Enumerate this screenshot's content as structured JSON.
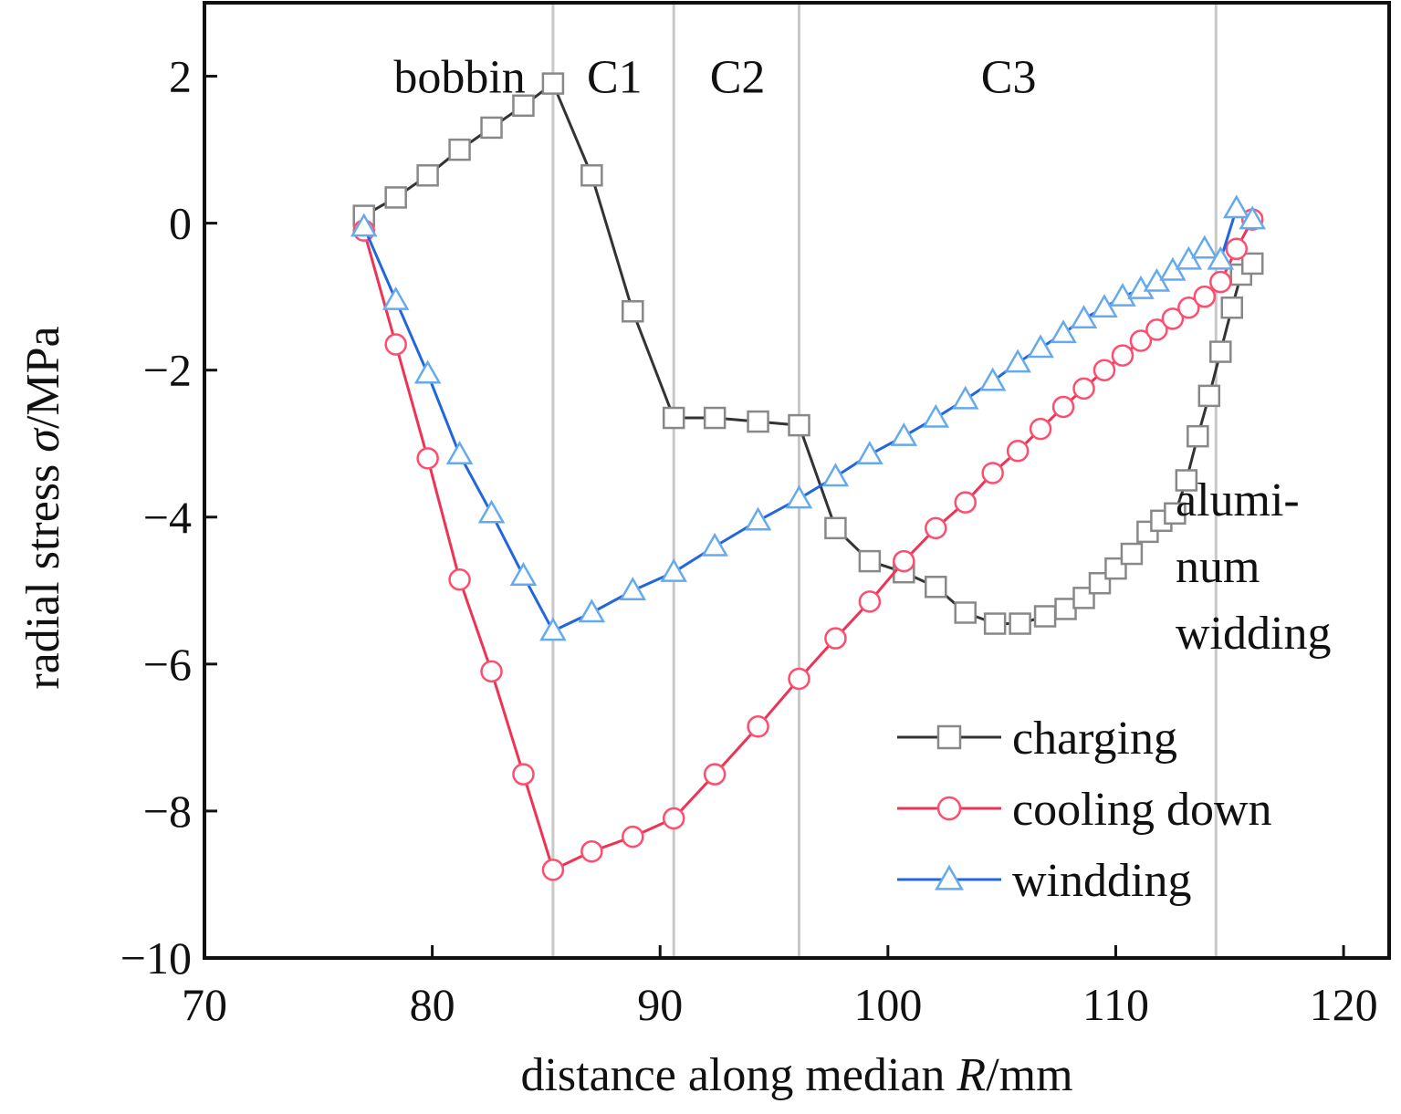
{
  "chart_data": {
    "type": "line",
    "title": "",
    "xlabel_main": "distance along median ",
    "xlabel_var": "R",
    "xlabel_unit": "/mm",
    "ylabel_main": "radial stress ",
    "ylabel_var": "σ",
    "ylabel_unit": "/MPa",
    "xlim": [
      70,
      122
    ],
    "ylim": [
      -10,
      3
    ],
    "xticks": [
      70,
      80,
      90,
      100,
      110,
      120
    ],
    "yticks": [
      -10,
      -8,
      -6,
      -4,
      -2,
      0,
      2
    ],
    "xtick_labels": [
      "70",
      "80",
      "90",
      "100",
      "110",
      "120"
    ],
    "ytick_labels": [
      "−10",
      "−8",
      "−6",
      "−4",
      "−2",
      "0",
      "2"
    ],
    "region_boundaries": [
      85.3,
      90.6,
      96.1,
      114.4
    ],
    "region_labels": [
      {
        "text": "bobbin",
        "x": 81.2,
        "y": 2.0
      },
      {
        "text": "C1",
        "x": 88.0,
        "y": 2.0
      },
      {
        "text": "C2",
        "x": 93.4,
        "y": 2.0
      },
      {
        "text": "C3",
        "x": 105.3,
        "y": 2.0
      }
    ],
    "annotation_lines": [
      "alumi-",
      "num",
      "widding"
    ],
    "legend_position": "bottom-right",
    "grid": false,
    "series": [
      {
        "name": "charging",
        "color": "#333333",
        "marker": "square",
        "x": [
          77.0,
          78.4,
          79.8,
          81.2,
          82.6,
          84.0,
          85.3,
          87.0,
          88.8,
          90.6,
          92.4,
          94.3,
          96.1,
          97.7,
          99.2,
          100.7,
          102.1,
          103.4,
          104.7,
          105.8,
          106.9,
          107.8,
          108.6,
          109.3,
          110.0,
          110.7,
          111.4,
          112.0,
          112.6,
          113.1,
          113.6,
          114.1,
          114.6,
          115.1,
          115.5,
          116.0
        ],
        "y": [
          0.1,
          0.35,
          0.65,
          1.0,
          1.3,
          1.6,
          1.9,
          0.65,
          -1.2,
          -2.65,
          -2.65,
          -2.7,
          -2.75,
          -4.15,
          -4.6,
          -4.75,
          -4.95,
          -5.3,
          -5.45,
          -5.45,
          -5.35,
          -5.25,
          -5.1,
          -4.9,
          -4.7,
          -4.5,
          -4.2,
          -4.05,
          -3.95,
          -3.5,
          -2.9,
          -2.35,
          -1.75,
          -1.15,
          -0.7,
          -0.55
        ]
      },
      {
        "name": "cooling down",
        "color": "#ee3355",
        "marker": "circle",
        "x": [
          77.0,
          78.4,
          79.8,
          81.2,
          82.6,
          84.0,
          85.3,
          87.0,
          88.8,
          90.6,
          92.4,
          94.3,
          96.1,
          97.7,
          99.2,
          100.7,
          102.1,
          103.4,
          104.6,
          105.7,
          106.7,
          107.7,
          108.6,
          109.5,
          110.3,
          111.1,
          111.8,
          112.5,
          113.2,
          113.9,
          114.6,
          115.3,
          116.0
        ],
        "y": [
          -0.1,
          -1.65,
          -3.2,
          -4.85,
          -6.1,
          -7.5,
          -8.8,
          -8.55,
          -8.35,
          -8.1,
          -7.5,
          -6.85,
          -6.2,
          -5.65,
          -5.15,
          -4.6,
          -4.15,
          -3.8,
          -3.4,
          -3.1,
          -2.8,
          -2.5,
          -2.25,
          -2.0,
          -1.8,
          -1.6,
          -1.45,
          -1.3,
          -1.15,
          -1.0,
          -0.8,
          -0.35,
          0.05
        ]
      },
      {
        "name": "windding",
        "color": "#2266dd",
        "marker": "triangle",
        "x": [
          77.0,
          78.4,
          79.8,
          81.2,
          82.6,
          84.0,
          85.3,
          87.0,
          88.8,
          90.6,
          92.4,
          94.3,
          96.1,
          97.7,
          99.2,
          100.7,
          102.1,
          103.4,
          104.6,
          105.7,
          106.7,
          107.7,
          108.6,
          109.5,
          110.3,
          111.1,
          111.8,
          112.5,
          113.2,
          113.9,
          114.6,
          115.3,
          116.0
        ],
        "y": [
          -0.05,
          -1.05,
          -2.05,
          -3.15,
          -3.95,
          -4.8,
          -5.55,
          -5.3,
          -5.0,
          -4.75,
          -4.4,
          -4.05,
          -3.75,
          -3.45,
          -3.15,
          -2.9,
          -2.65,
          -2.4,
          -2.15,
          -1.9,
          -1.7,
          -1.5,
          -1.3,
          -1.15,
          -1.0,
          -0.9,
          -0.8,
          -0.65,
          -0.5,
          -0.35,
          -0.5,
          0.2,
          0.05
        ]
      }
    ]
  }
}
